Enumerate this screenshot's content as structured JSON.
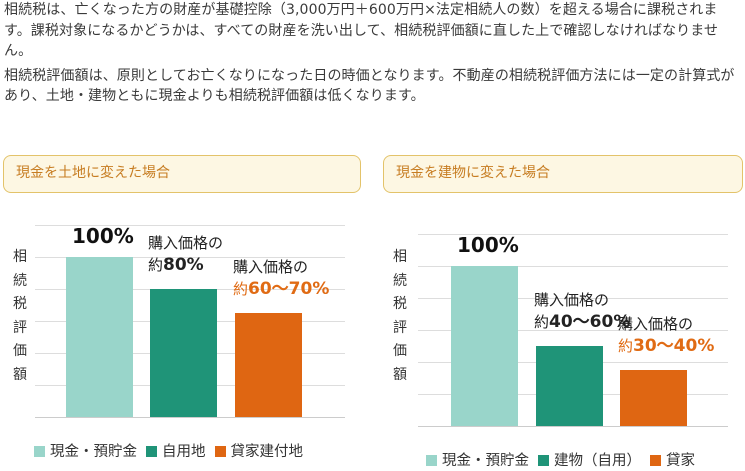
{
  "intro": {
    "p1": "相続税は、亡くなった方の財産が基礎控除（3,000万円＋600万円×法定相続人の数）を超える場合に課税されます。課税対象になるかどうかは、すべての財産を洗い出して、相続税評価額に直した上で確認しなければなりません。",
    "p2": "相続税評価額は、原則としてお亡くなりになった日の時価となります。不動産の相続税評価方法には一定の計算式があり、土地・建物ともに現金よりも相続税評価額は低くなります。"
  },
  "colors": {
    "cash": "#99d5ca",
    "mid": "#1f9478",
    "orange": "#df6612",
    "grid": "#dddddd"
  },
  "chart_data": [
    {
      "type": "bar",
      "title": "現金を土地に変えた場合",
      "ylabel": "相続税評価額",
      "categories": [
        "現金・預貯金",
        "自用地",
        "貸家建付地"
      ],
      "values": [
        100,
        80,
        65
      ],
      "ylim": [
        0,
        125
      ],
      "grid": true,
      "labels": [
        {
          "prefix": "",
          "value": "100%",
          "sub": ""
        },
        {
          "prefix": "約",
          "value": "80%",
          "sub": "購入価格の"
        },
        {
          "prefix": "約",
          "value": "60〜70%",
          "sub": "購入価格の"
        }
      ],
      "legend_position": "bottom"
    },
    {
      "type": "bar",
      "title": "現金を建物に変えた場合",
      "ylabel": "相続税評価額",
      "categories": [
        "現金・預貯金",
        "建物（自用）",
        "貸家"
      ],
      "values": [
        100,
        50,
        35
      ],
      "ylim": [
        0,
        125
      ],
      "grid": true,
      "labels": [
        {
          "prefix": "",
          "value": "100%",
          "sub": ""
        },
        {
          "prefix": "約",
          "value": "40〜60%",
          "sub": "購入価格の"
        },
        {
          "prefix": "約",
          "value": "30〜40%",
          "sub": "購入価格の"
        }
      ],
      "legend_position": "bottom"
    }
  ]
}
